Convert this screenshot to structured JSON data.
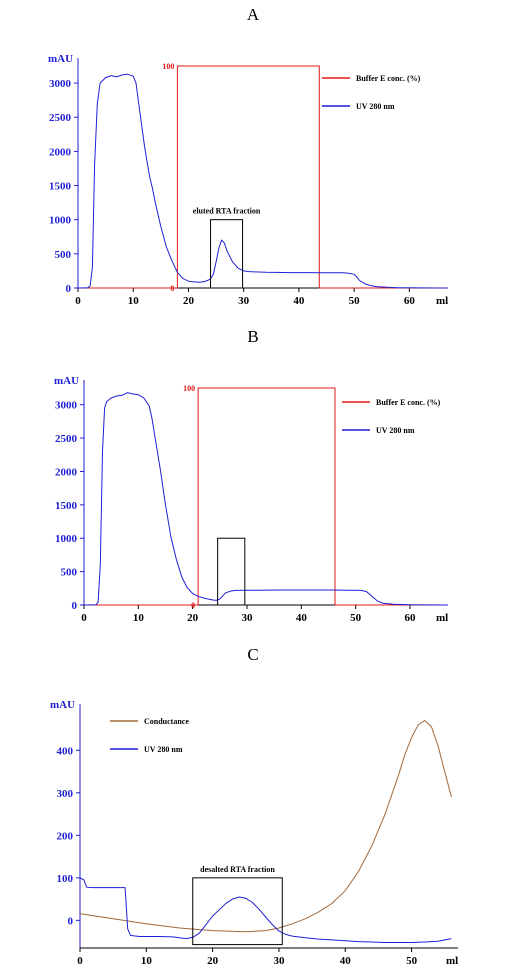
{
  "colors": {
    "uv": "#1f1fd6",
    "buffer": "#e01818",
    "conductance": "#a0683a",
    "axis": "#000000",
    "box": "#000000"
  },
  "chart_data": [
    {
      "type": "line",
      "panel_label": "A",
      "xlabel": "ml",
      "ylabel": "mAU",
      "xlim": [
        0,
        67
      ],
      "ylim": [
        0,
        3250
      ],
      "y2lim": [
        0,
        100
      ],
      "x_ticks": [
        0,
        10,
        20,
        30,
        40,
        50,
        60
      ],
      "y_ticks": [
        0,
        500,
        1000,
        1500,
        2000,
        2500,
        3000
      ],
      "y2_ticks": [
        0,
        100
      ],
      "series": [
        {
          "name": "Buffer E conc. (%)",
          "axis": "y2",
          "x": [
            0,
            18,
            18,
            43.7,
            43.7,
            67
          ],
          "y": [
            0,
            0,
            100,
            100,
            0,
            0
          ]
        },
        {
          "name": "UV 280 nm",
          "axis": "y",
          "x": [
            0,
            1.8,
            2.2,
            2.6,
            3,
            3.5,
            4,
            5,
            6,
            7,
            8,
            9,
            10,
            10.5,
            11,
            11.5,
            12,
            12.5,
            13,
            13.5,
            14,
            15,
            16,
            17,
            18,
            19,
            20,
            21,
            22,
            23,
            24,
            24.5,
            25,
            25.5,
            26,
            26.5,
            27,
            28,
            29,
            30,
            31,
            32,
            34,
            36,
            38,
            40,
            42,
            44,
            46,
            48,
            49,
            50,
            50.5,
            51,
            52,
            53,
            54,
            56,
            58,
            60,
            62,
            65,
            67
          ],
          "y": [
            0,
            5,
            30,
            300,
            1800,
            2700,
            3000,
            3080,
            3110,
            3090,
            3120,
            3130,
            3100,
            3000,
            2700,
            2400,
            2100,
            1850,
            1620,
            1450,
            1250,
            900,
            600,
            400,
            230,
            140,
            100,
            90,
            85,
            95,
            130,
            200,
            380,
            580,
            700,
            660,
            540,
            380,
            290,
            250,
            240,
            235,
            230,
            228,
            226,
            225,
            225,
            224,
            222,
            222,
            215,
            200,
            160,
            110,
            60,
            35,
            20,
            10,
            5,
            3,
            2,
            0,
            0
          ]
        }
      ],
      "annotations": [
        {
          "text": "eluted RTA fraction",
          "x0": 24,
          "x1": 29.8,
          "y0": 0,
          "y1": 1000
        }
      ]
    },
    {
      "type": "line",
      "panel_label": "B",
      "xlabel": "ml",
      "ylabel": "mAU",
      "xlim": [
        0,
        67
      ],
      "ylim": [
        0,
        3250
      ],
      "y2lim": [
        0,
        100
      ],
      "x_ticks": [
        0,
        10,
        20,
        30,
        40,
        50,
        60
      ],
      "y_ticks": [
        0,
        500,
        1000,
        1500,
        2000,
        2500,
        3000
      ],
      "y2_ticks": [
        0,
        100
      ],
      "series": [
        {
          "name": "Buffer E conc. (%)",
          "axis": "y2",
          "x": [
            0,
            21,
            21,
            46.2,
            46.2,
            67
          ],
          "y": [
            0,
            0,
            100,
            100,
            0,
            0
          ]
        },
        {
          "name": "UV 280 nm",
          "axis": "y",
          "x": [
            0,
            2.2,
            2.6,
            3,
            3.4,
            3.8,
            4.2,
            5,
            6,
            7,
            8,
            9,
            10,
            11,
            12,
            12.5,
            13,
            14,
            15,
            16,
            17,
            18,
            19,
            20,
            21,
            22,
            23,
            24,
            24.5,
            25,
            25.5,
            26,
            27,
            28,
            30,
            32,
            34,
            36,
            38,
            40,
            42,
            44,
            46,
            48,
            50,
            51,
            52,
            53,
            54,
            55,
            57,
            60,
            63,
            67
          ],
          "y": [
            0,
            5,
            40,
            600,
            2300,
            2950,
            3050,
            3100,
            3130,
            3140,
            3180,
            3160,
            3150,
            3100,
            2980,
            2800,
            2550,
            2050,
            1500,
            1020,
            680,
            420,
            260,
            170,
            130,
            105,
            85,
            70,
            72,
            90,
            130,
            180,
            210,
            218,
            220,
            222,
            223,
            224,
            224,
            224,
            224,
            225,
            224,
            222,
            222,
            218,
            200,
            130,
            60,
            25,
            10,
            5,
            2,
            0
          ]
        }
      ],
      "annotations": [
        {
          "text": "",
          "x0": 24.6,
          "x1": 29.6,
          "y0": 0,
          "y1": 1000
        }
      ]
    },
    {
      "type": "line",
      "panel_label": "C",
      "xlabel": "ml",
      "ylabel": "mAU",
      "xlim": [
        0,
        57
      ],
      "ylim": [
        -65,
        490
      ],
      "x_ticks": [
        0,
        10,
        20,
        30,
        40,
        50
      ],
      "y_ticks": [
        0,
        100,
        200,
        300,
        400
      ],
      "series": [
        {
          "name": "Conductance",
          "axis": "y",
          "x": [
            0,
            5,
            10,
            15,
            20,
            25,
            28,
            30,
            32,
            34,
            36,
            38,
            40,
            42,
            44,
            46,
            48,
            49,
            50,
            51,
            52,
            53,
            54,
            55,
            56
          ],
          "y": [
            16,
            4,
            -8,
            -18,
            -24,
            -27,
            -24,
            -18,
            -8,
            4,
            20,
            40,
            70,
            115,
            175,
            250,
            340,
            390,
            430,
            460,
            470,
            455,
            410,
            350,
            290
          ]
        },
        {
          "name": "UV 280 nm",
          "axis": "y",
          "x": [
            0,
            0.6,
            1,
            2,
            4,
            6,
            6.8,
            7.2,
            7.6,
            8,
            9,
            10,
            12,
            14,
            15,
            16,
            17,
            18,
            19,
            20,
            21,
            22,
            23,
            24,
            25,
            26,
            27,
            28,
            29,
            30,
            31,
            32,
            34,
            36,
            38,
            40,
            42,
            44,
            46,
            48,
            50,
            52,
            54,
            56
          ],
          "y": [
            100,
            95,
            78,
            77,
            77,
            77,
            77,
            -20,
            -35,
            -36,
            -38,
            -38,
            -38,
            -39,
            -41,
            -43,
            -40,
            -30,
            -10,
            10,
            25,
            40,
            50,
            55,
            52,
            42,
            26,
            8,
            -10,
            -25,
            -33,
            -37,
            -41,
            -44,
            -46,
            -48,
            -50,
            -51,
            -52,
            -52,
            -52,
            -51,
            -49,
            -43
          ]
        }
      ],
      "annotations": [
        {
          "text": "desalted RTA fraction",
          "x0": 17,
          "x1": 30.5,
          "y0": -57,
          "y1": 100
        }
      ]
    }
  ]
}
